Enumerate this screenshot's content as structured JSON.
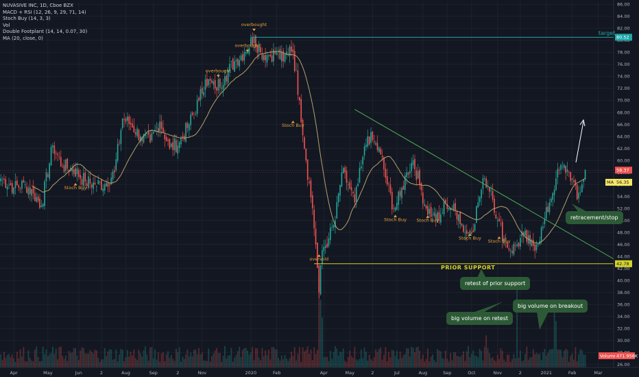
{
  "legend": {
    "symbol": "NUVASIVE INC, 1D, Cboe BZX",
    "indicators": [
      "MACD + RSI (12, 26, 9, 29, 71, 14)",
      "Stoch Buy (14, 3, 3)",
      "Vol",
      "Double Footplant (14, 14, 0.07, 30)",
      "MA (20, close, 0)"
    ]
  },
  "annotations": {
    "target": "target",
    "prior_support": "PRIOR SUPPORT",
    "retracement": "retracement/stop",
    "retest": "retest of prior support",
    "big_volume_retest": "big volume on retest",
    "big_volume_breakout": "big volume on breakout"
  },
  "signals": {
    "overbought": "overbought",
    "oversold": "oversold",
    "stoch_buy": "Stoch Buy"
  },
  "price_tags": {
    "target": "80.52",
    "current": "58.37",
    "ma_label": "MA",
    "ma": "56.35",
    "support": "42.78",
    "volume_label": "Volume",
    "volume": "471.956K"
  },
  "colors": {
    "background": "#131722",
    "grid": "#1e222d",
    "up": "#26a69a",
    "down": "#ef5350",
    "ma": "#b5a36a",
    "trendline": "#4caf50",
    "support": "#d4d22a",
    "target": "#1fa8a8",
    "signal": "#e8a23a",
    "note_bg": "#2d5a36"
  },
  "chart_data": {
    "type": "candlestick",
    "y_axis_ticks": [
      86,
      84,
      82,
      80,
      78,
      76,
      74,
      72,
      70,
      68,
      66,
      64,
      62,
      60,
      58,
      56,
      54,
      52,
      50,
      48,
      46,
      44,
      42,
      40,
      38,
      36,
      34,
      32,
      30,
      28,
      26
    ],
    "ylim": [
      25.5,
      86.5
    ],
    "x_axis_labels": [
      "Apr",
      "May",
      "Jun",
      "2",
      "Aug",
      "Sep",
      "2",
      "Nov",
      "2020",
      "Feb",
      "Apr",
      "May",
      "2",
      "Jul",
      "Aug",
      "Sep",
      "Oct",
      "Nov",
      "2",
      "2021",
      "Feb",
      "Mar"
    ],
    "x_axis_label_index": [
      8,
      29,
      48,
      62,
      77,
      94,
      109,
      124,
      154,
      170,
      199,
      215,
      229,
      244,
      260,
      275,
      290,
      306,
      320,
      336,
      352,
      368
    ],
    "total_bars": 378,
    "close_anchors": [
      [
        0,
        57
      ],
      [
        8,
        55.5
      ],
      [
        15,
        56
      ],
      [
        20,
        54.5
      ],
      [
        25,
        52.5
      ],
      [
        32,
        62.5
      ],
      [
        38,
        59
      ],
      [
        45,
        58.5
      ],
      [
        52,
        56.5
      ],
      [
        58,
        56
      ],
      [
        64,
        56
      ],
      [
        70,
        58
      ],
      [
        75,
        67
      ],
      [
        80,
        66
      ],
      [
        86,
        64
      ],
      [
        92,
        63
      ],
      [
        98,
        66.5
      ],
      [
        104,
        62
      ],
      [
        110,
        63
      ],
      [
        116,
        66
      ],
      [
        122,
        70
      ],
      [
        126,
        73.5
      ],
      [
        132,
        72
      ],
      [
        138,
        74
      ],
      [
        144,
        76.5
      ],
      [
        150,
        78
      ],
      [
        156,
        80.5
      ],
      [
        160,
        78
      ],
      [
        165,
        77.5
      ],
      [
        170,
        78
      ],
      [
        174,
        76.5
      ],
      [
        178,
        79
      ],
      [
        180,
        78
      ],
      [
        184,
        70
      ],
      [
        188,
        60
      ],
      [
        192,
        52
      ],
      [
        194,
        46
      ],
      [
        196,
        38
      ],
      [
        198,
        45
      ],
      [
        202,
        47
      ],
      [
        206,
        50
      ],
      [
        210,
        58
      ],
      [
        214,
        56
      ],
      [
        218,
        53
      ],
      [
        222,
        59
      ],
      [
        226,
        64
      ],
      [
        230,
        63
      ],
      [
        234,
        61
      ],
      [
        238,
        56
      ],
      [
        242,
        52
      ],
      [
        246,
        54
      ],
      [
        250,
        58
      ],
      [
        254,
        60
      ],
      [
        258,
        56
      ],
      [
        262,
        52
      ],
      [
        266,
        51
      ],
      [
        270,
        50
      ],
      [
        274,
        53
      ],
      [
        278,
        52
      ],
      [
        282,
        51
      ],
      [
        286,
        48
      ],
      [
        290,
        48
      ],
      [
        294,
        53
      ],
      [
        298,
        57
      ],
      [
        302,
        55
      ],
      [
        306,
        50
      ],
      [
        310,
        47
      ],
      [
        314,
        45
      ],
      [
        318,
        46
      ],
      [
        322,
        47.5
      ],
      [
        326,
        46
      ],
      [
        330,
        46
      ],
      [
        334,
        49
      ],
      [
        338,
        53
      ],
      [
        342,
        57
      ],
      [
        346,
        59
      ],
      [
        350,
        58
      ],
      [
        352,
        57
      ],
      [
        355,
        53.5
      ],
      [
        358,
        56
      ],
      [
        360,
        58.5
      ]
    ],
    "last_close": 58.37,
    "ma_period": 20,
    "target_level": 80.52,
    "support_level": 42.78,
    "trendline": [
      [
        218,
        68.5
      ],
      [
        378,
        43.5
      ]
    ],
    "volume_max_k": 3000,
    "volume_last_k": 471.956,
    "volume_spikes": [
      [
        196,
        2600
      ],
      [
        197,
        1900
      ],
      [
        198,
        1400
      ],
      [
        299,
        900
      ],
      [
        318,
        2200
      ],
      [
        341,
        1700
      ],
      [
        342,
        1300
      ]
    ],
    "signals_overbought": [
      [
        156,
        82.4
      ],
      [
        152,
        78.9
      ],
      [
        134,
        74.7
      ]
    ],
    "signals_oversold": [
      [
        196,
        43.3
      ]
    ],
    "signals_stoch_buy": [
      [
        46,
        55.2
      ],
      [
        180,
        65.6
      ],
      [
        243,
        49.9
      ],
      [
        263,
        49.8
      ],
      [
        289,
        46.8
      ],
      [
        307,
        46.3
      ]
    ]
  }
}
